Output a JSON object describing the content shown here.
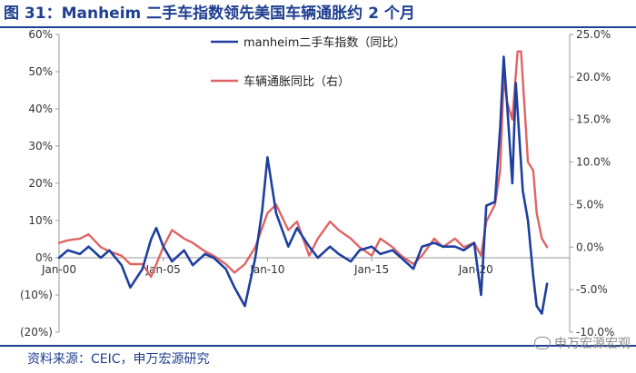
{
  "header": {
    "title": "图 31：Manheim 二手车指数领先美国车辆通胀约 2 个月"
  },
  "footer": {
    "source": "资料来源：CEIC，申万宏源研究",
    "watermark": "申万宏源宏观"
  },
  "chart_data": {
    "type": "line",
    "x_start": "2000-01",
    "x_step": "month",
    "xticks": [
      "Jan-00",
      "Jan-05",
      "Jan-10",
      "Jan-15",
      "Jan-20"
    ],
    "y_left": {
      "ticks": [
        "60%",
        "50%",
        "40%",
        "30%",
        "20%",
        "10%",
        "0%",
        "(10%)",
        "(20%)"
      ],
      "lim": [
        -20,
        60
      ]
    },
    "y_right": {
      "ticks": [
        "25.0%",
        "20.0%",
        "15.0%",
        "10.0%",
        "5.0%",
        "0.0%",
        "-5.0%",
        "-10.0%"
      ],
      "lim": [
        -10,
        25
      ]
    },
    "colors": {
      "manheim": "#1f3f9f",
      "vehicle_cpi": "#e06464"
    },
    "series": [
      {
        "name": "manheim二手车指数（同比）",
        "axis": "left",
        "points": [
          [
            "2000-01",
            0
          ],
          [
            "2000-06",
            2
          ],
          [
            "2001-01",
            1
          ],
          [
            "2001-06",
            3
          ],
          [
            "2002-01",
            0
          ],
          [
            "2002-06",
            2
          ],
          [
            "2003-01",
            -2
          ],
          [
            "2003-06",
            -8
          ],
          [
            "2004-01",
            -3
          ],
          [
            "2004-06",
            5
          ],
          [
            "2004-09",
            8
          ],
          [
            "2005-01",
            3
          ],
          [
            "2005-06",
            -1
          ],
          [
            "2006-01",
            2
          ],
          [
            "2006-06",
            -2
          ],
          [
            "2007-01",
            1
          ],
          [
            "2007-06",
            0
          ],
          [
            "2008-01",
            -3
          ],
          [
            "2008-06",
            -8
          ],
          [
            "2008-12",
            -13
          ],
          [
            "2009-06",
            0
          ],
          [
            "2009-10",
            13
          ],
          [
            "2010-01",
            27
          ],
          [
            "2010-06",
            12
          ],
          [
            "2011-01",
            3
          ],
          [
            "2011-06",
            8
          ],
          [
            "2012-01",
            3
          ],
          [
            "2012-06",
            0
          ],
          [
            "2013-01",
            3
          ],
          [
            "2013-06",
            1
          ],
          [
            "2014-01",
            -1
          ],
          [
            "2014-06",
            2
          ],
          [
            "2015-01",
            3
          ],
          [
            "2015-06",
            1
          ],
          [
            "2016-01",
            2
          ],
          [
            "2016-06",
            0
          ],
          [
            "2017-01",
            -3
          ],
          [
            "2017-06",
            3
          ],
          [
            "2018-01",
            4
          ],
          [
            "2018-06",
            3
          ],
          [
            "2019-01",
            3
          ],
          [
            "2019-06",
            2
          ],
          [
            "2019-12",
            4
          ],
          [
            "2020-04",
            -10
          ],
          [
            "2020-07",
            14
          ],
          [
            "2020-12",
            15
          ],
          [
            "2021-03",
            35
          ],
          [
            "2021-05",
            54
          ],
          [
            "2021-07",
            41
          ],
          [
            "2021-10",
            20
          ],
          [
            "2021-12",
            47
          ],
          [
            "2022-04",
            18
          ],
          [
            "2022-07",
            10
          ],
          [
            "2022-10",
            -5
          ],
          [
            "2022-12",
            -13
          ],
          [
            "2023-03",
            -15
          ],
          [
            "2023-06",
            -7
          ]
        ]
      },
      {
        "name": "车辆通胀同比（右）",
        "axis": "right",
        "points": [
          [
            "2000-01",
            0.5
          ],
          [
            "2000-06",
            0.8
          ],
          [
            "2001-01",
            1
          ],
          [
            "2001-06",
            1.5
          ],
          [
            "2002-01",
            0
          ],
          [
            "2002-06",
            -0.5
          ],
          [
            "2003-01",
            -1
          ],
          [
            "2003-06",
            -2
          ],
          [
            "2004-01",
            -2
          ],
          [
            "2004-06",
            -3.5
          ],
          [
            "2005-01",
            0
          ],
          [
            "2005-06",
            2
          ],
          [
            "2006-01",
            1
          ],
          [
            "2006-06",
            0.5
          ],
          [
            "2007-01",
            -0.5
          ],
          [
            "2007-06",
            -1
          ],
          [
            "2008-01",
            -2
          ],
          [
            "2008-06",
            -3
          ],
          [
            "2008-12",
            -2
          ],
          [
            "2009-06",
            0
          ],
          [
            "2010-01",
            4
          ],
          [
            "2010-06",
            5
          ],
          [
            "2011-01",
            2
          ],
          [
            "2011-06",
            3
          ],
          [
            "2012-01",
            -1
          ],
          [
            "2012-06",
            1
          ],
          [
            "2013-01",
            3
          ],
          [
            "2013-06",
            2
          ],
          [
            "2014-01",
            1
          ],
          [
            "2014-06",
            0
          ],
          [
            "2015-01",
            -1
          ],
          [
            "2015-06",
            1
          ],
          [
            "2016-01",
            0
          ],
          [
            "2016-06",
            -1
          ],
          [
            "2017-01",
            -2
          ],
          [
            "2017-06",
            -1
          ],
          [
            "2018-01",
            1
          ],
          [
            "2018-06",
            0
          ],
          [
            "2019-01",
            1
          ],
          [
            "2019-06",
            0
          ],
          [
            "2019-12",
            0.5
          ],
          [
            "2020-04",
            -1
          ],
          [
            "2020-07",
            3
          ],
          [
            "2020-12",
            5
          ],
          [
            "2021-03",
            9
          ],
          [
            "2021-05",
            20
          ],
          [
            "2021-07",
            17
          ],
          [
            "2021-10",
            15
          ],
          [
            "2022-01",
            23
          ],
          [
            "2022-03",
            23
          ],
          [
            "2022-07",
            10
          ],
          [
            "2022-10",
            9
          ],
          [
            "2022-12",
            4
          ],
          [
            "2023-03",
            1
          ],
          [
            "2023-06",
            0
          ]
        ]
      }
    ]
  }
}
